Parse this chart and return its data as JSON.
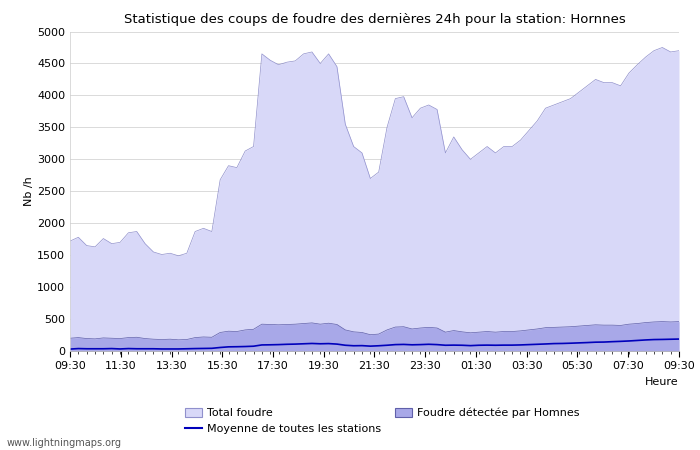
{
  "title": "Statistique des coups de foudre des dernières 24h pour la station: Hornnes",
  "xlabel": "Heure",
  "ylabel": "Nb /h",
  "ylim": [
    0,
    5000
  ],
  "yticks": [
    0,
    500,
    1000,
    1500,
    2000,
    2500,
    3000,
    3500,
    4000,
    4500,
    5000
  ],
  "xtick_labels": [
    "09:30",
    "11:30",
    "13:30",
    "15:30",
    "17:30",
    "19:30",
    "21:30",
    "23:30",
    "01:30",
    "03:30",
    "05:30",
    "07:30",
    "09:30"
  ],
  "total_foudre_color": "#d8d8f8",
  "total_foudre_edge": "#9090cc",
  "detected_color": "#a8a8e8",
  "detected_edge": "#6060aa",
  "moyenne_color": "#0000bb",
  "watermark": "www.lightningmaps.org",
  "legend1": "Total foudre",
  "legend2": "Moyenne de toutes les stations",
  "legend3": "Foudre détectée par Homnes",
  "total_foudre": [
    1720,
    1780,
    1650,
    1630,
    1760,
    1680,
    1700,
    1850,
    1870,
    1680,
    1550,
    1510,
    1530,
    1490,
    1530,
    1870,
    1920,
    1870,
    2680,
    2900,
    2870,
    3130,
    3200,
    4650,
    4550,
    4480,
    4520,
    4540,
    4650,
    4680,
    4500,
    4650,
    4450,
    3550,
    3200,
    3100,
    2700,
    2800,
    3500,
    3950,
    3980,
    3650,
    3800,
    3850,
    3780,
    3100,
    3350,
    3150,
    3000,
    3100,
    3200,
    3100,
    3200,
    3200,
    3300,
    3450,
    3600,
    3800,
    3850,
    3900,
    3950,
    4050,
    4150,
    4250,
    4200,
    4200,
    4150,
    4350,
    4480,
    4600,
    4700,
    4750,
    4680,
    4700
  ],
  "detected": [
    200,
    210,
    195,
    190,
    205,
    200,
    195,
    210,
    215,
    195,
    185,
    180,
    185,
    175,
    180,
    210,
    220,
    215,
    290,
    310,
    305,
    330,
    340,
    420,
    415,
    410,
    415,
    420,
    430,
    440,
    420,
    435,
    415,
    330,
    300,
    290,
    255,
    265,
    330,
    375,
    380,
    345,
    360,
    370,
    360,
    295,
    320,
    300,
    285,
    295,
    305,
    295,
    305,
    305,
    315,
    330,
    345,
    365,
    370,
    375,
    380,
    390,
    400,
    410,
    405,
    405,
    400,
    420,
    430,
    445,
    455,
    460,
    455,
    460
  ],
  "moyenne": [
    30,
    38,
    35,
    35,
    35,
    38,
    32,
    38,
    35,
    35,
    35,
    32,
    32,
    32,
    35,
    38,
    40,
    42,
    55,
    65,
    67,
    70,
    75,
    95,
    97,
    100,
    105,
    108,
    113,
    118,
    113,
    116,
    108,
    90,
    82,
    84,
    76,
    82,
    90,
    100,
    103,
    97,
    100,
    105,
    100,
    90,
    92,
    90,
    84,
    90,
    92,
    90,
    92,
    92,
    95,
    100,
    105,
    110,
    116,
    118,
    122,
    127,
    132,
    138,
    140,
    146,
    151,
    157,
    165,
    173,
    179,
    181,
    184,
    187
  ]
}
